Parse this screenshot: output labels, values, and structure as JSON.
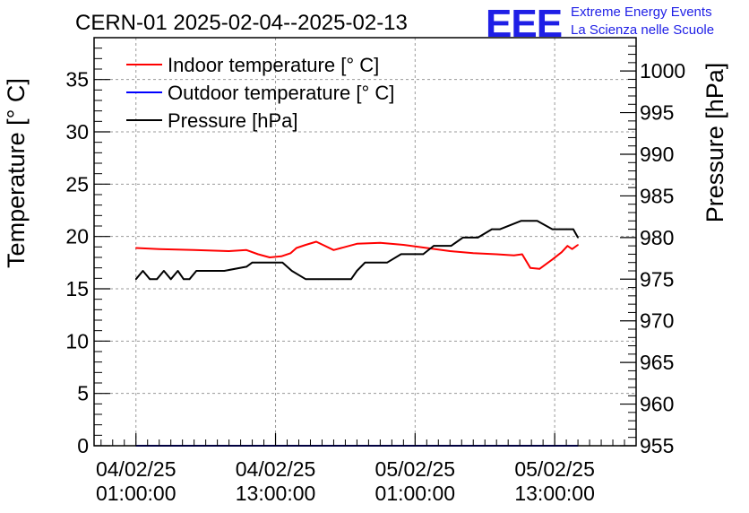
{
  "chart_data": {
    "type": "line",
    "title": "CERN-01 2025-02-04--2025-02-13",
    "ylabel": "Temperature [° C]",
    "y2label": "Pressure [hPa]",
    "ylim": [
      0,
      39
    ],
    "y2lim": [
      955,
      1004
    ],
    "x_ticks": [
      {
        "line1": "04/02/25",
        "line2": "01:00:00",
        "t": 1
      },
      {
        "line1": "04/02/25",
        "line2": "13:00:00",
        "t": 13
      },
      {
        "line1": "05/02/25",
        "line2": "01:00:00",
        "t": 25
      },
      {
        "line1": "05/02/25",
        "line2": "13:00:00",
        "t": 37
      }
    ],
    "x_range_hours": [
      -2.6,
      44.0
    ],
    "y_ticks": [
      0,
      5,
      10,
      15,
      20,
      25,
      30,
      35
    ],
    "y2_ticks": [
      955,
      960,
      965,
      970,
      975,
      980,
      985,
      990,
      995,
      1000
    ],
    "legend": [
      {
        "label": "Indoor temperature [° C]",
        "color": "#ff0000"
      },
      {
        "label": "Outdoor temperature [° C]",
        "color": "#0000ff"
      },
      {
        "label": "Pressure [hPa]",
        "color": "#000000"
      }
    ],
    "series": [
      {
        "name": "Indoor temperature [° C]",
        "axis": "left",
        "color": "#ff0000",
        "x": [
          1.0,
          3.0,
          6.0,
          9.0,
          10.5,
          11.5,
          12.5,
          13.5,
          14.3,
          14.8,
          15.6,
          16.5,
          18.0,
          20.0,
          22.0,
          24.0,
          26.0,
          28.0,
          30.0,
          32.0,
          33.5,
          34.2,
          34.9,
          35.7,
          36.8,
          37.6,
          38.1,
          38.5,
          39.0
        ],
        "values": [
          18.9,
          18.8,
          18.7,
          18.6,
          18.7,
          18.3,
          18.0,
          18.1,
          18.4,
          18.9,
          19.2,
          19.5,
          18.7,
          19.3,
          19.4,
          19.2,
          18.9,
          18.6,
          18.4,
          18.3,
          18.2,
          18.3,
          17.0,
          16.9,
          17.8,
          18.5,
          19.1,
          18.8,
          19.2
        ]
      },
      {
        "name": "Outdoor temperature [° C]",
        "axis": "left",
        "color": "#0000ff",
        "x": [
          1.0,
          39.0
        ],
        "values": [
          0.0,
          0.0
        ]
      },
      {
        "name": "Pressure [hPa]",
        "axis": "right",
        "color": "#000000",
        "x": [
          1.0,
          1.6,
          2.2,
          2.8,
          3.4,
          4.0,
          4.6,
          5.1,
          5.6,
          6.2,
          7.8,
          8.6,
          10.5,
          11.0,
          11.6,
          12.9,
          13.6,
          14.4,
          15.6,
          16.7,
          17.3,
          18.4,
          19.5,
          20.0,
          20.7,
          22.0,
          22.6,
          23.8,
          24.9,
          25.7,
          26.6,
          28.1,
          29.1,
          30.4,
          31.6,
          32.3,
          34.1,
          34.9,
          35.5,
          36.8,
          37.4,
          38.0,
          38.6,
          39.0
        ],
        "values": [
          975.0,
          976.0,
          975.0,
          975.0,
          976.0,
          975.0,
          976.0,
          975.0,
          975.0,
          976.0,
          976.0,
          976.0,
          976.5,
          977.0,
          977.0,
          977.0,
          977.0,
          976.0,
          975.0,
          975.0,
          975.0,
          975.0,
          975.0,
          976.0,
          977.0,
          977.0,
          977.0,
          978.0,
          978.0,
          978.0,
          979.0,
          979.0,
          980.0,
          980.0,
          981.0,
          981.0,
          982.0,
          982.0,
          982.0,
          981.0,
          981.0,
          981.0,
          981.0,
          980.0
        ]
      }
    ]
  },
  "eee": {
    "logo": "EEE",
    "line1": "Extreme Energy Events",
    "line2": "La Scienza nelle Scuole"
  }
}
